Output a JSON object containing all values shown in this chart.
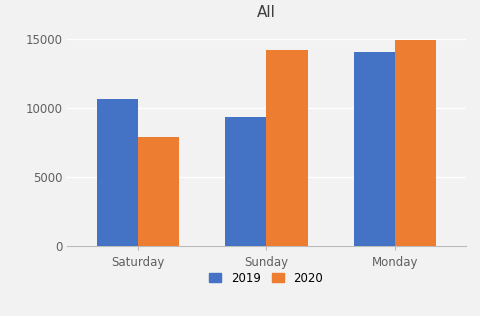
{
  "title": "All",
  "categories": [
    "Saturday",
    "Sunday",
    "Monday"
  ],
  "series": {
    "2019": [
      10700,
      9400,
      14100
    ],
    "2020": [
      7900,
      14200,
      14900
    ]
  },
  "colors": {
    "2019": "#4472C4",
    "2020": "#ED7D31"
  },
  "ylim": [
    0,
    16000
  ],
  "yticks": [
    0,
    5000,
    10000,
    15000
  ],
  "bar_width": 0.32,
  "background_color": "#F2F2F2",
  "plot_bg_color": "#F2F2F2",
  "grid_color": "#FFFFFF",
  "title_fontsize": 11,
  "tick_fontsize": 8.5,
  "legend_fontsize": 8.5,
  "title_color": "#404040",
  "tick_color": "#606060"
}
